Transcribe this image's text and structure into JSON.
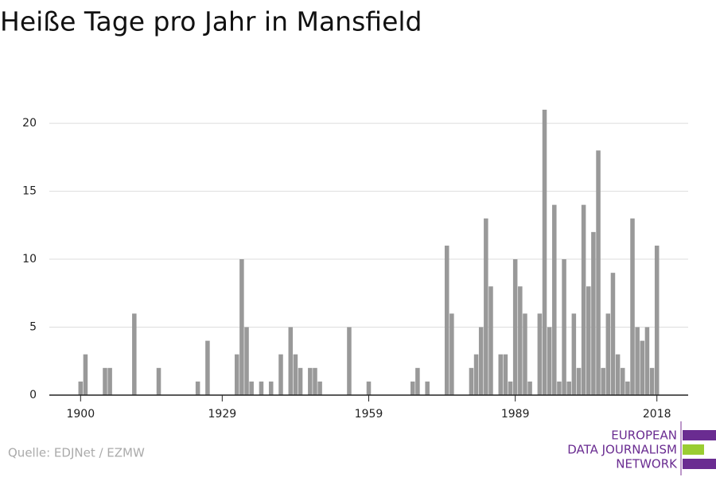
{
  "chart_data": {
    "type": "bar",
    "title": "Heiße Tage pro Jahr in Mansfield",
    "source": "Quelle: EDJNet / EZMW",
    "logo": [
      "EUROPEAN",
      "DATA JOURNALISM",
      "NETWORK"
    ],
    "color": "#999999",
    "x": [
      1900,
      1901,
      1905,
      1906,
      1911,
      1916,
      1924,
      1926,
      1932,
      1933,
      1934,
      1935,
      1937,
      1939,
      1941,
      1943,
      1944,
      1945,
      1947,
      1948,
      1949,
      1955,
      1959,
      1968,
      1969,
      1971,
      1975,
      1976,
      1980,
      1981,
      1982,
      1983,
      1984,
      1986,
      1987,
      1988,
      1989,
      1990,
      1991,
      1992,
      1994,
      1995,
      1996,
      1997,
      1998,
      1999,
      2000,
      2001,
      2002,
      2003,
      2004,
      2005,
      2006,
      2007,
      2008,
      2009,
      2010,
      2011,
      2012,
      2013,
      2014,
      2015,
      2016,
      2017,
      2018
    ],
    "values": [
      1,
      3,
      2,
      2,
      6,
      2,
      1,
      4,
      3,
      10,
      5,
      1,
      1,
      1,
      3,
      5,
      3,
      2,
      2,
      2,
      1,
      5,
      1,
      1,
      2,
      1,
      11,
      6,
      2,
      3,
      5,
      13,
      8,
      3,
      3,
      1,
      10,
      8,
      6,
      1,
      6,
      21,
      5,
      14,
      1,
      10,
      1,
      6,
      2,
      14,
      8,
      12,
      18,
      2,
      6,
      9,
      3,
      2,
      1,
      13,
      5,
      4,
      5,
      2,
      11
    ],
    "xlim": [
      1893.6,
      2024.4
    ],
    "xticks": [
      1900,
      1929,
      1959,
      1989,
      2018
    ],
    "ylim": [
      0,
      21
    ],
    "yticks": [
      0,
      5,
      10,
      15,
      20
    ],
    "grid": true
  }
}
